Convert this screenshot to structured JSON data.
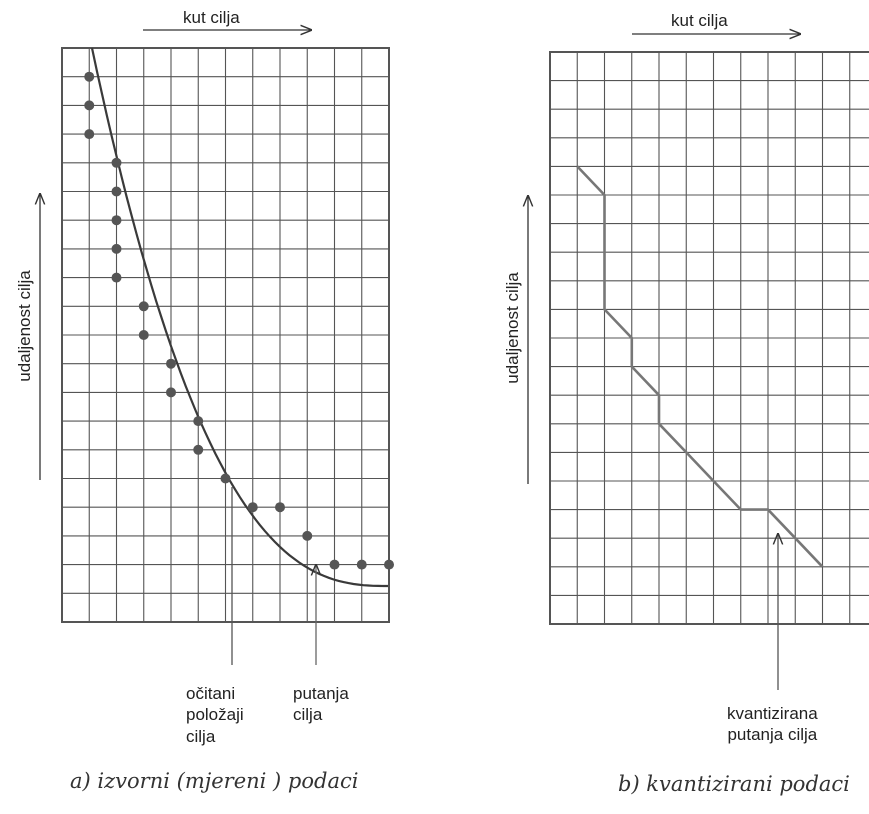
{
  "panel_a": {
    "x_axis_label": "kut cilja",
    "y_axis_label": "udaljenost cilja",
    "annotation_points": "očitani položaji cilja",
    "annotation_points_lines": [
      "očitani",
      "položaji",
      "cilja"
    ],
    "annotation_path": "putanja cilja",
    "annotation_path_lines": [
      "putanja",
      "cilja"
    ],
    "caption": "a) izvorni (mjereni ) podaci"
  },
  "panel_b": {
    "x_axis_label": "kut cilja",
    "y_axis_label": "udaljenost cilja",
    "annotation": "kvantizirana putanja cilja",
    "annotation_lines": [
      "kvantizirana",
      "putanja cilja"
    ],
    "caption": "b) kvantizirani podaci"
  },
  "colors": {
    "grid": "#555555",
    "curve": "#3a3a3a",
    "points": "#555555",
    "quantized_path": "#777777"
  },
  "grid": {
    "columns": 12,
    "rows": 20
  },
  "measured_points": [
    [
      1,
      1
    ],
    [
      1,
      2
    ],
    [
      1,
      3
    ],
    [
      2,
      4
    ],
    [
      2,
      5
    ],
    [
      2,
      6
    ],
    [
      2,
      7
    ],
    [
      2,
      8
    ],
    [
      3,
      9
    ],
    [
      3,
      10
    ],
    [
      4,
      11
    ],
    [
      4,
      12
    ],
    [
      5,
      13
    ],
    [
      5,
      14
    ],
    [
      6,
      15
    ],
    [
      7,
      16
    ],
    [
      8,
      16
    ],
    [
      9,
      17
    ],
    [
      10,
      18
    ],
    [
      11,
      18
    ],
    [
      12,
      18
    ]
  ],
  "quantized_path": [
    [
      1,
      4
    ],
    [
      2,
      5
    ],
    [
      2,
      9
    ],
    [
      3,
      10
    ],
    [
      3,
      11
    ],
    [
      4,
      12
    ],
    [
      4,
      13
    ],
    [
      5,
      14
    ],
    [
      6,
      15
    ],
    [
      7,
      16
    ],
    [
      8,
      16
    ],
    [
      9,
      17
    ],
    [
      10,
      18
    ]
  ]
}
